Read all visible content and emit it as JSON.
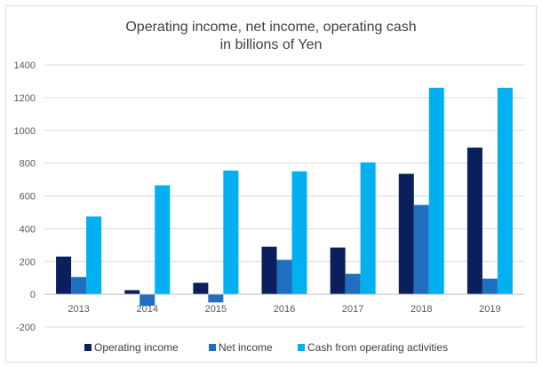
{
  "chart_data": {
    "type": "bar",
    "title": "Operating income, net income, operating cash",
    "subtitle": "in billions of Yen",
    "xlabel": "",
    "ylabel": "",
    "categories": [
      "2013",
      "2014",
      "2015",
      "2016",
      "2017",
      "2018",
      "2019"
    ],
    "series": [
      {
        "name": "Operating income",
        "color": "#0b1f5c",
        "values": [
          230,
          25,
          70,
          290,
          285,
          735,
          895
        ]
      },
      {
        "name": "Net income",
        "color": "#1f6ec0",
        "values": [
          105,
          -70,
          -50,
          210,
          125,
          545,
          95
        ]
      },
      {
        "name": "Cash from operating activities",
        "color": "#00b0f0",
        "values": [
          475,
          665,
          755,
          750,
          805,
          1260,
          1260
        ]
      }
    ],
    "ylim": [
      -200,
      1400
    ],
    "yticks": [
      -200,
      0,
      200,
      400,
      600,
      800,
      1000,
      1200,
      1400
    ],
    "grid": true,
    "legend_position": "bottom"
  }
}
